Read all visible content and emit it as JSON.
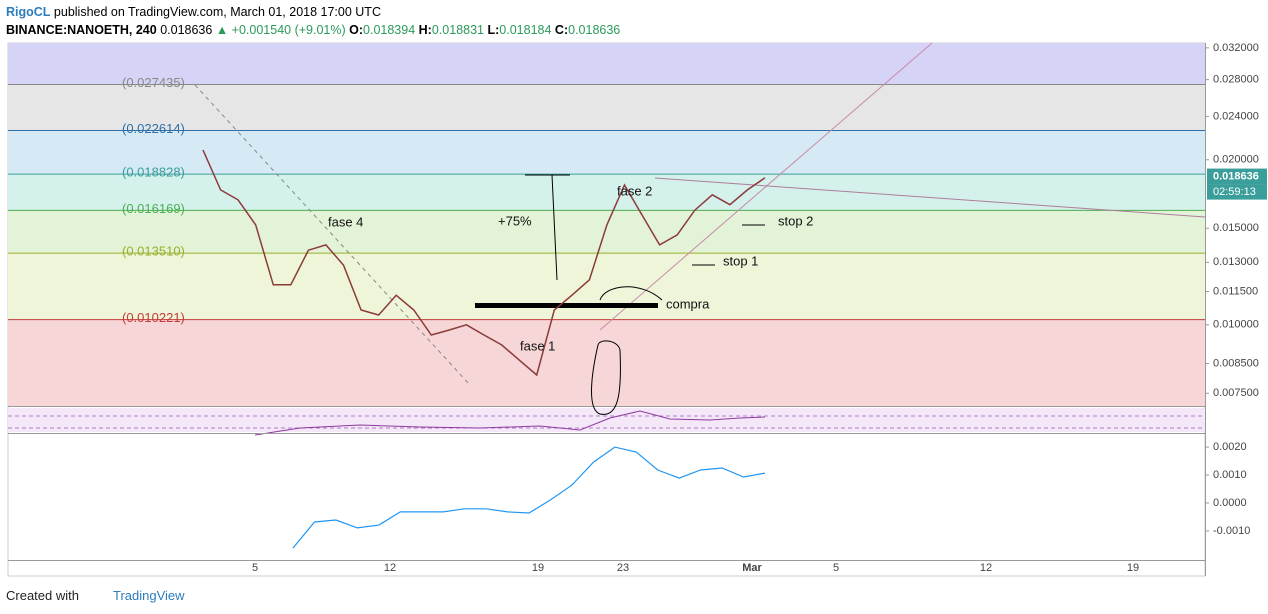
{
  "header": {
    "author": "RigoCL",
    "published": "published on TradingView.com, March 01, 2018 17:00 UTC",
    "symbol": "BINANCE:NANOETH, 240",
    "last": "0.018636",
    "change": "▲ +0.001540 (+9.01%)",
    "ohlc": [
      {
        "label": "O:",
        "value": "0.018394"
      },
      {
        "label": "H:",
        "value": "0.018831"
      },
      {
        "label": "L:",
        "value": "0.018184"
      },
      {
        "label": "C:",
        "value": "0.018636"
      }
    ]
  },
  "price_pane": {
    "scale": "log",
    "ylim": [
      0.00711,
      0.03266
    ],
    "yticks": [
      {
        "value": 0.032,
        "label": "0.032000"
      },
      {
        "value": 0.028,
        "label": "0.028000"
      },
      {
        "value": 0.024,
        "label": "0.024000"
      },
      {
        "value": 0.02,
        "label": "0.020000"
      },
      {
        "value": 0.015,
        "label": "0.015000"
      },
      {
        "value": 0.013,
        "label": "0.013000"
      },
      {
        "value": 0.0115,
        "label": "0.011500"
      },
      {
        "value": 0.01,
        "label": "0.010000"
      },
      {
        "value": 0.0085,
        "label": "0.008500"
      },
      {
        "value": 0.0075,
        "label": "0.007500"
      }
    ],
    "top_band_color": "#d6d4f6",
    "fib_levels": [
      {
        "value": 0.027435,
        "label": "(0.027435)",
        "line_color": "#888888",
        "band_color": "#e6e6e6"
      },
      {
        "value": 0.022614,
        "label": "(0.022614)",
        "line_color": "#2f6fa8",
        "band_color": "#d5eaf5"
      },
      {
        "value": 0.018828,
        "label": "(0.018828)",
        "line_color": "#3a9e9a",
        "band_color": "#d4f1ec"
      },
      {
        "value": 0.016169,
        "label": "(0.016169)",
        "line_color": "#4caf50",
        "band_color": "#e2f3d8"
      },
      {
        "value": 0.01351,
        "label": "(0.013510)",
        "line_color": "#9aaf2a",
        "band_color": "#eef5d8"
      },
      {
        "value": 0.010221,
        "label": "(0.010221)",
        "line_color": "#c43b3b",
        "band_color": "#f6d6d6"
      }
    ],
    "last_price": 0.018636,
    "countdown": "02:59:13",
    "price_series": {
      "color": "#8b3a3a",
      "values": [
        0.02084,
        0.01762,
        0.0169,
        0.01521,
        0.01183,
        0.01183,
        0.01368,
        0.01399,
        0.01285,
        0.01064,
        0.01042,
        0.01132,
        0.01064,
        0.00958,
        0.00978,
        0.01,
        0.00958,
        0.00919,
        0.00863,
        0.0081,
        0.01064,
        0.01132,
        0.01208,
        0.01521,
        0.01799,
        0.01585,
        0.01399,
        0.01459,
        0.01618,
        0.01726,
        0.01656,
        0.01762,
        0.01854
      ]
    },
    "annotations": [
      "fase 4",
      "+75%",
      "fase 2",
      "stop 2",
      "stop 1",
      "compra",
      "fase 1"
    ]
  },
  "macd_pane": {
    "ylim": [
      -0.00204,
      0.00236
    ],
    "yticks": [
      {
        "value": 0.002,
        "label": "0.0020"
      },
      {
        "value": 0.001,
        "label": "0.0010"
      },
      {
        "value": 0,
        "label": "0.0000"
      },
      {
        "value": -0.001,
        "label": "-0.0010"
      }
    ],
    "macd": {
      "color": "#2196f3",
      "values": [
        -0.00161,
        -0.00068,
        -0.00061,
        -0.00089,
        -0.00079,
        -0.00032,
        -0.00032,
        -0.00032,
        -0.00021,
        -0.00021,
        -0.00032,
        -0.00036,
        0.00011,
        0.00064,
        0.00146,
        0.002,
        0.00182,
        0.00118,
        0.00089,
        0.00118,
        0.00125,
        0.00093,
        0.00107
      ]
    }
  },
  "time_axis": [
    "5",
    "12",
    "19",
    "23",
    "Mar",
    "5",
    "12",
    "19"
  ],
  "footer": {
    "created": "Created with",
    "brand": "TradingView"
  }
}
